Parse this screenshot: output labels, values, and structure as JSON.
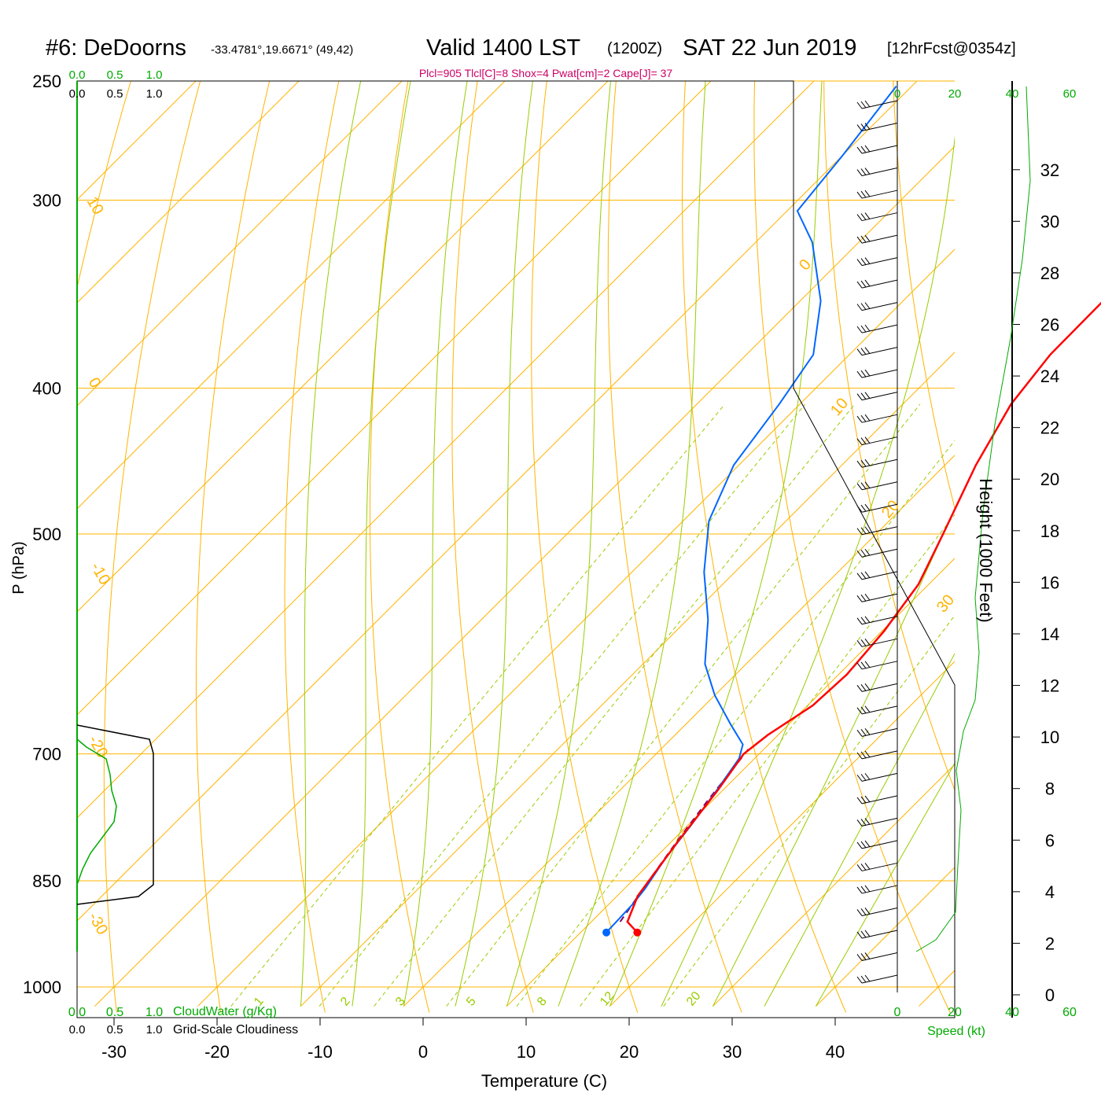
{
  "header": {
    "station": "#6: DeDoorns",
    "coords": "-33.4781°,19.6671° (49,42)",
    "valid": "Valid 1400 LST",
    "zulu": "(1200Z)",
    "date": "SAT 22 Jun 2019",
    "fcst": "[12hrFcst@0354z]",
    "indices": "Plcl=905 Tlcl[C]=8 Shox=4 Pwat[cm]=2 Cape[J]= 37"
  },
  "axes": {
    "xlabel": "Temperature (C)",
    "ylabel": "P (hPa)",
    "height_label": "Height (1000 Feet)",
    "speed_label": "Speed (kt)",
    "cloudwater_label": "CloudWater (g/Kg)",
    "cloudiness_label": "Grid-Scale Cloudiness"
  },
  "colors": {
    "temperature": "#ff0000",
    "dewpoint": "#0066ff",
    "parcel": "#800060",
    "isobar_isotherm": "#ffb400",
    "adiabat": "#99cc00",
    "mixing_ratio": "#99cc00",
    "cloudwater": "#00aa00",
    "cloudiness": "#000000",
    "wind_profile": "#00aa00",
    "indices_text": "#cc0066"
  },
  "chart_data": {
    "type": "line",
    "title": "#6: DeDoorns  Valid 1400 LST (1200Z) SAT 22 Jun 2019",
    "xlabel": "Temperature (C)",
    "ylabel": "P (hPa)",
    "xlim": [
      -38,
      38
    ],
    "ylim_pressure_hPa": [
      1030,
      250
    ],
    "x_ticks": [
      -30,
      -20,
      -10,
      0,
      10,
      20,
      30,
      40
    ],
    "pressure_ticks": [
      250,
      300,
      400,
      500,
      700,
      850,
      1000
    ],
    "height_ticks_kft": [
      0,
      2,
      4,
      6,
      8,
      10,
      12,
      14,
      16,
      18,
      20,
      22,
      24,
      26,
      28,
      30,
      32
    ],
    "isotherm_labels": [
      {
        "label": "10"
      },
      {
        "label": "0"
      },
      {
        "label": "-10"
      },
      {
        "label": "-20"
      },
      {
        "label": "-30"
      },
      {
        "label": "0"
      },
      {
        "label": "10"
      },
      {
        "label": "20"
      },
      {
        "label": "30"
      }
    ],
    "mixing_ratio_labels": [
      "1",
      "2",
      "3",
      "5",
      "8",
      "12",
      "20"
    ],
    "temperature_profile": [
      {
        "p": 920,
        "t": 15.5
      },
      {
        "p": 905,
        "t": 13.5
      },
      {
        "p": 870,
        "t": 12.0
      },
      {
        "p": 800,
        "t": 10.6
      },
      {
        "p": 740,
        "t": 9.5
      },
      {
        "p": 700,
        "t": 8.5
      },
      {
        "p": 680,
        "t": 9.0
      },
      {
        "p": 650,
        "t": 10.5
      },
      {
        "p": 620,
        "t": 10.8
      },
      {
        "p": 580,
        "t": 10.2
      },
      {
        "p": 540,
        "t": 9.0
      },
      {
        "p": 500,
        "t": 6.5
      },
      {
        "p": 450,
        "t": 3.0
      },
      {
        "p": 410,
        "t": 0.5
      },
      {
        "p": 380,
        "t": -0.5
      },
      {
        "p": 340,
        "t": -0.6
      },
      {
        "p": 300,
        "t": 0.0
      },
      {
        "p": 252,
        "t": 0.8
      }
    ],
    "dewpoint_profile": [
      {
        "p": 920,
        "t": 12.5
      },
      {
        "p": 880,
        "t": 12.3
      },
      {
        "p": 860,
        "t": 12.0
      },
      {
        "p": 820,
        "t": 11.0
      },
      {
        "p": 780,
        "t": 10.3
      },
      {
        "p": 740,
        "t": 9.4
      },
      {
        "p": 705,
        "t": 8.5
      },
      {
        "p": 690,
        "t": 7.5
      },
      {
        "p": 670,
        "t": 4.5
      },
      {
        "p": 640,
        "t": 0.0
      },
      {
        "p": 610,
        "t": -4.0
      },
      {
        "p": 570,
        "t": -8.0
      },
      {
        "p": 530,
        "t": -13.0
      },
      {
        "p": 490,
        "t": -17.5
      },
      {
        "p": 450,
        "t": -20.5
      },
      {
        "p": 410,
        "t": -22.0
      },
      {
        "p": 380,
        "t": -23.5
      },
      {
        "p": 350,
        "t": -28.0
      },
      {
        "p": 320,
        "t": -34.5
      },
      {
        "p": 305,
        "t": -39.0
      },
      {
        "p": 280,
        "t": -40.0
      },
      {
        "p": 252,
        "t": -41.5
      }
    ],
    "parcel_profile": [
      {
        "p": 905,
        "t": 12.8
      },
      {
        "p": 850,
        "t": 11.6
      },
      {
        "p": 800,
        "t": 10.5
      },
      {
        "p": 750,
        "t": 9.5
      },
      {
        "p": 695,
        "t": 8.5
      }
    ],
    "surface_temperature": 15.5,
    "surface_dewpoint": 12.5,
    "wind_speed_axis_kt": [
      0,
      20,
      40,
      60
    ]
  }
}
